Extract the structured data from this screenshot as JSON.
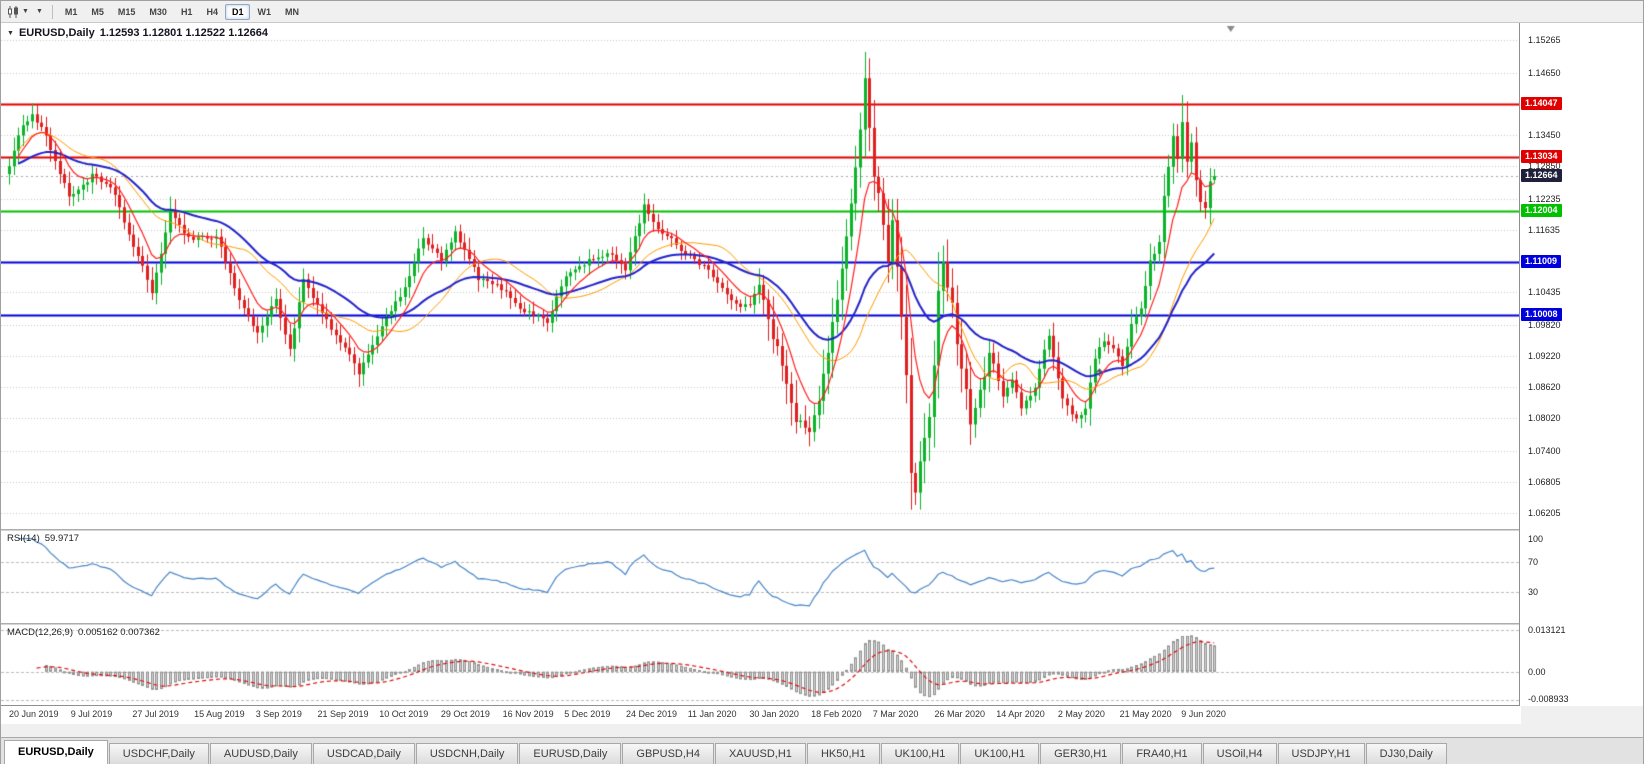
{
  "toolbar": {
    "timeframes": [
      {
        "label": "M1",
        "active": false
      },
      {
        "label": "M5",
        "active": false
      },
      {
        "label": "M15",
        "active": false
      },
      {
        "label": "M30",
        "active": false
      },
      {
        "label": "H1",
        "active": false
      },
      {
        "label": "H4",
        "active": false
      },
      {
        "label": "D1",
        "active": true
      },
      {
        "label": "W1",
        "active": false
      },
      {
        "label": "MN",
        "active": false
      }
    ]
  },
  "chart": {
    "symbol": "EURUSD,Daily",
    "ohlc": "1.12593 1.12801 1.12522 1.12664",
    "current_price": "1.12664",
    "axis_ticks": [
      "1.15265",
      "1.14650",
      "1.13450",
      "1.12850",
      "1.12235",
      "1.11635",
      "1.10435",
      "1.09820",
      "1.09220",
      "1.08620",
      "1.08020",
      "1.07400",
      "1.06805",
      "1.06205"
    ],
    "price_badges": [
      {
        "value": "1.14047",
        "color": "#e00000",
        "text": "#ffffff"
      },
      {
        "value": "1.13034",
        "color": "#e00000",
        "text": "#ffffff"
      },
      {
        "value": "1.12664",
        "color": "#20203c",
        "text": "#ffffff"
      },
      {
        "value": "1.12004",
        "color": "#00c000",
        "text": "#ffffff"
      },
      {
        "value": "1.11009",
        "color": "#0000dc",
        "text": "#ffffff"
      },
      {
        "value": "1.10008",
        "color": "#0000dc",
        "text": "#ffffff"
      }
    ],
    "hlines": [
      {
        "value": 1.14047,
        "color": "#e00000",
        "width": 2
      },
      {
        "value": 1.13034,
        "color": "#e00000",
        "width": 2
      },
      {
        "value": 1.12004,
        "color": "#00c000",
        "width": 2
      },
      {
        "value": 1.11009,
        "color": "#0000dc",
        "width": 2
      },
      {
        "value": 1.10008,
        "color": "#0000dc",
        "width": 2
      }
    ]
  },
  "rsi": {
    "name": "RSI(14)",
    "value": "59.9717",
    "ticks": [
      {
        "label": "100",
        "v": 100
      },
      {
        "label": "70",
        "v": 70
      },
      {
        "label": "30",
        "v": 30
      }
    ],
    "levels": [
      70,
      30
    ],
    "range": [
      -10,
      110
    ],
    "color": "#4a86c8"
  },
  "macd": {
    "name": "MACD(12,26,9)",
    "values": "0.005162 0.007362",
    "ticks": [
      {
        "label": "0.013121",
        "v": 0.013121
      },
      {
        "label": "0.00",
        "v": 0
      },
      {
        "label": "-0.008933",
        "v": -0.008933
      }
    ],
    "range": [
      -0.0104,
      0.0146
    ],
    "hist_fill": "#cfcfcf",
    "hist_border": "#949494",
    "signal_color": "#e01010"
  },
  "dates": [
    "20 Jun 2019",
    "9 Jul 2019",
    "27 Jul 2019",
    "15 Aug 2019",
    "3 Sep 2019",
    "21 Sep 2019",
    "10 Oct 2019",
    "29 Oct 2019",
    "16 Nov 2019",
    "5 Dec 2019",
    "24 Dec 2019",
    "11 Jan 2020",
    "30 Jan 2020",
    "18 Feb 2020",
    "7 Mar 2020",
    "26 Mar 2020",
    "14 Apr 2020",
    "2 May 2020",
    "21 May 2020",
    "9 Jun 2020"
  ],
  "date_x0": 8,
  "date_dx": 61.7,
  "tabs": [
    {
      "label": "EURUSD,Daily",
      "active": true
    },
    {
      "label": "USDCHF,Daily",
      "active": false
    },
    {
      "label": "AUDUSD,Daily",
      "active": false
    },
    {
      "label": "USDCAD,Daily",
      "active": false
    },
    {
      "label": "USDCNH,Daily",
      "active": false
    },
    {
      "label": "EURUSD,Daily",
      "active": false
    },
    {
      "label": "GBPUSD,H4",
      "active": false
    },
    {
      "label": "XAUUSD,H1",
      "active": false
    },
    {
      "label": "HK50,H1",
      "active": false
    },
    {
      "label": "UK100,H1",
      "active": false
    },
    {
      "label": "UK100,H1",
      "active": false
    },
    {
      "label": "GER30,H1",
      "active": false
    },
    {
      "label": "FRA40,H1",
      "active": false
    },
    {
      "label": "USOil,H4",
      "active": false
    },
    {
      "label": "USDJPY,H1",
      "active": false
    },
    {
      "label": "DJ30,Daily",
      "active": false
    }
  ],
  "chart_data": {
    "type": "candlestick",
    "symbol": "EURUSD",
    "timeframe": "Daily",
    "bars": 263,
    "x0": 8,
    "dx": 4.6,
    "body_w": 3,
    "y_range": [
      1.059,
      1.156
    ],
    "current_price": 1.12664,
    "up_color": "#0db32a",
    "down_color": "#e02020",
    "ma_fast_color": "#ff2020",
    "ma_mid_color": "#ff9c00",
    "ma_slow_color": "#2424c8",
    "anchors": [
      [
        0,
        1.129
      ],
      [
        2,
        1.134
      ],
      [
        5,
        1.139
      ],
      [
        8,
        1.1345
      ],
      [
        13,
        1.1225
      ],
      [
        18,
        1.1268
      ],
      [
        23,
        1.123
      ],
      [
        27,
        1.113
      ],
      [
        31,
        1.1045
      ],
      [
        35,
        1.1195
      ],
      [
        40,
        1.114
      ],
      [
        45,
        1.1155
      ],
      [
        50,
        1.103
      ],
      [
        54,
        1.0965
      ],
      [
        58,
        1.103
      ],
      [
        61,
        1.0935
      ],
      [
        64,
        1.1065
      ],
      [
        67,
        1.1015
      ],
      [
        72,
        1.0945
      ],
      [
        76,
        1.089
      ],
      [
        80,
        1.0965
      ],
      [
        85,
        1.1035
      ],
      [
        90,
        1.1145
      ],
      [
        94,
        1.1105
      ],
      [
        97,
        1.1155
      ],
      [
        102,
        1.107
      ],
      [
        107,
        1.105
      ],
      [
        112,
        1.101
      ],
      [
        117,
        1.099
      ],
      [
        121,
        1.1075
      ],
      [
        126,
        1.1105
      ],
      [
        131,
        1.1115
      ],
      [
        134,
        1.109
      ],
      [
        138,
        1.121
      ],
      [
        142,
        1.1155
      ],
      [
        147,
        1.112
      ],
      [
        152,
        1.109
      ],
      [
        157,
        1.1025
      ],
      [
        161,
        1.1015
      ],
      [
        163,
        1.107
      ],
      [
        167,
        1.094
      ],
      [
        171,
        1.079
      ],
      [
        174,
        1.0785
      ],
      [
        176,
        1.083
      ],
      [
        178,
        1.092
      ],
      [
        180,
        1.103
      ],
      [
        182,
        1.116
      ],
      [
        184,
        1.129
      ],
      [
        186,
        1.145
      ],
      [
        187,
        1.136
      ],
      [
        188,
        1.127
      ],
      [
        190,
        1.118
      ],
      [
        191,
        1.1105
      ],
      [
        192,
        1.118
      ],
      [
        194,
        1.099
      ],
      [
        195,
        1.088
      ],
      [
        196,
        1.07
      ],
      [
        197,
        1.066
      ],
      [
        198,
        1.073
      ],
      [
        200,
        1.08
      ],
      [
        201,
        1.089
      ],
      [
        202,
        1.103
      ],
      [
        203,
        1.109
      ],
      [
        205,
        1.103
      ],
      [
        206,
        1.096
      ],
      [
        209,
        1.08
      ],
      [
        211,
        1.086
      ],
      [
        213,
        1.093
      ],
      [
        216,
        1.085
      ],
      [
        218,
        1.088
      ],
      [
        220,
        1.082
      ],
      [
        223,
        1.086
      ],
      [
        226,
        1.096
      ],
      [
        229,
        1.084
      ],
      [
        232,
        1.08
      ],
      [
        234,
        1.0815
      ],
      [
        236,
        1.092
      ],
      [
        238,
        1.095
      ],
      [
        240,
        1.093
      ],
      [
        242,
        1.0895
      ],
      [
        244,
        1.0985
      ],
      [
        246,
        1.101
      ],
      [
        248,
        1.11
      ],
      [
        250,
        1.1135
      ],
      [
        251,
        1.123
      ],
      [
        253,
        1.134
      ],
      [
        254,
        1.13
      ],
      [
        255,
        1.1375
      ],
      [
        256,
        1.13
      ],
      [
        257,
        1.133
      ],
      [
        258,
        1.126
      ],
      [
        259,
        1.1215
      ],
      [
        260,
        1.1205
      ],
      [
        261,
        1.1259
      ],
      [
        262,
        1.12664
      ]
    ],
    "high_spikes": [
      [
        5,
        1.1406
      ],
      [
        186,
        1.1495
      ],
      [
        255,
        1.1422
      ]
    ],
    "low_spikes": [
      [
        197,
        1.0636
      ],
      [
        260,
        1.1198
      ]
    ],
    "last_ohlc": [
      1.12593,
      1.12801,
      1.12522,
      1.12664
    ],
    "vol_window": [
      163,
      212
    ],
    "trade_marker_index": 237,
    "seed": 1234
  }
}
